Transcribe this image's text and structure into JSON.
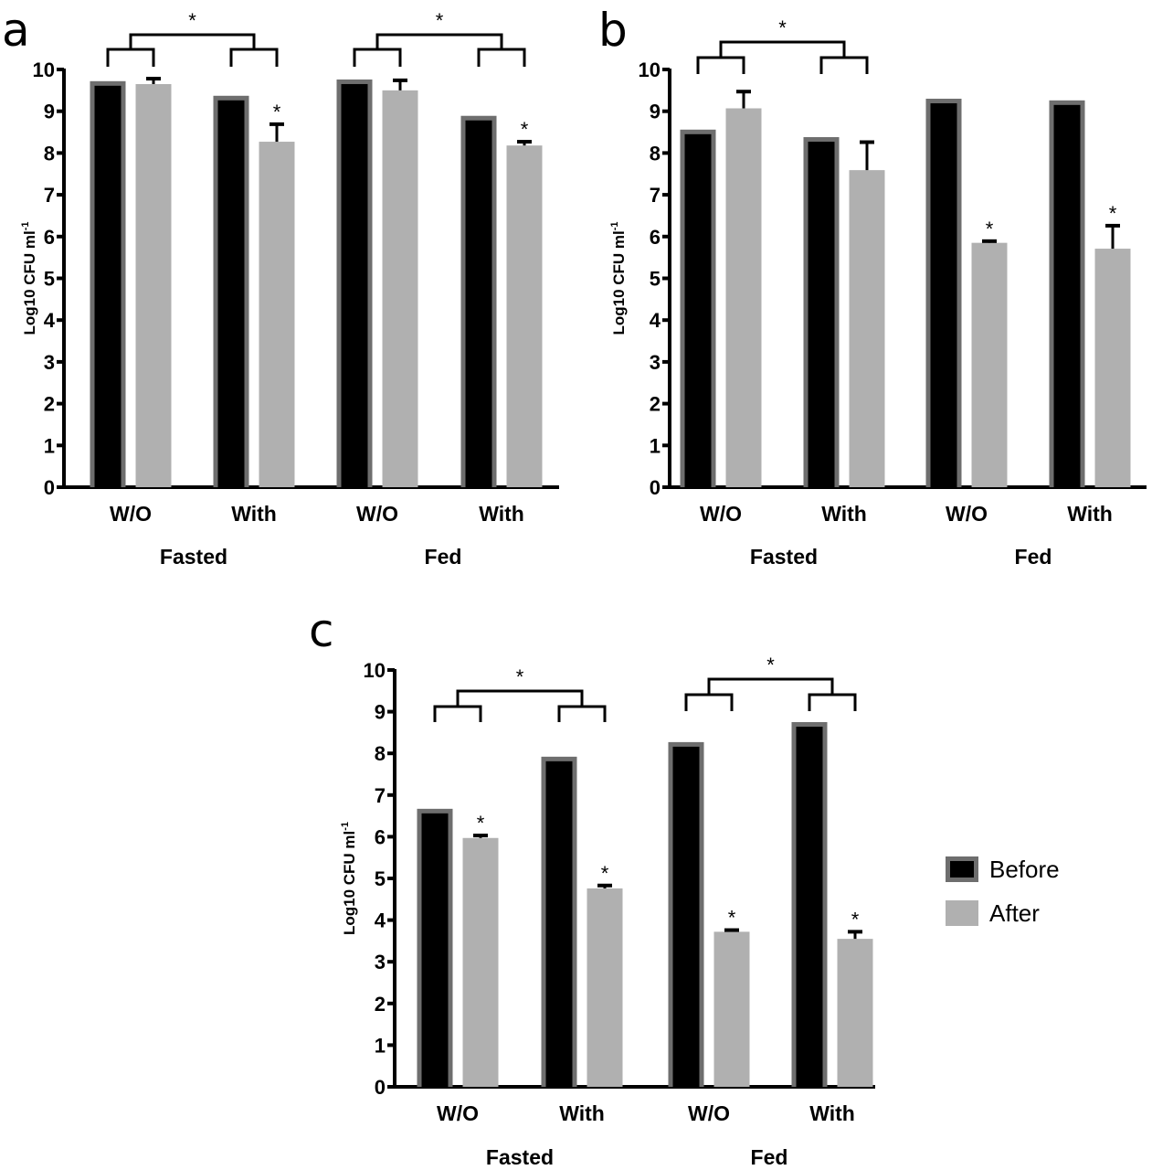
{
  "colors": {
    "before_fill": "#000000",
    "before_outline": "#6e6e6e",
    "after_fill": "#b0b0b0",
    "axis": "#000000"
  },
  "legend": {
    "placement": "right",
    "items": [
      {
        "label": "Before",
        "color": "#000000"
      },
      {
        "label": "After",
        "color": "#b0b0b0"
      }
    ]
  },
  "chart_data": [
    {
      "panel": "a",
      "type": "bar",
      "ylabel": "Log10 CFU ml",
      "ylabel_superscript": "-1",
      "ylim": [
        0,
        10
      ],
      "yticks": [
        "0",
        "1",
        "2",
        "3",
        "4",
        "5",
        "6",
        "7",
        "8",
        "9",
        "10"
      ],
      "categories": [
        "W/O",
        "With",
        "W/O",
        "With"
      ],
      "category_groups": [
        {
          "label": "Fasted",
          "members": [
            0,
            1
          ]
        },
        {
          "label": "Fed",
          "members": [
            2,
            3
          ]
        }
      ],
      "series": [
        {
          "name": "Before",
          "values": [
            9.72,
            9.37,
            9.76,
            8.89
          ]
        },
        {
          "name": "After",
          "values": [
            9.65,
            8.27,
            9.5,
            8.18
          ],
          "errors": [
            0.13,
            0.42,
            0.24,
            0.09
          ]
        }
      ],
      "after_significance": [
        "",
        "*",
        "",
        "*"
      ],
      "brackets": [
        {
          "groups": [
            0,
            1
          ],
          "label": "*"
        },
        {
          "groups": [
            2,
            3
          ],
          "label": "*"
        }
      ]
    },
    {
      "panel": "b",
      "type": "bar",
      "ylabel": "Log10 CFU ml",
      "ylabel_superscript": "-1",
      "ylim": [
        0,
        10
      ],
      "yticks": [
        "0",
        "1",
        "2",
        "3",
        "4",
        "5",
        "6",
        "7",
        "8",
        "9",
        "10"
      ],
      "categories": [
        "W/O",
        "With",
        "W/O",
        "With"
      ],
      "category_groups": [
        {
          "label": "Fasted",
          "members": [
            0,
            1
          ]
        },
        {
          "label": "Fed",
          "members": [
            2,
            3
          ]
        }
      ],
      "series": [
        {
          "name": "Before",
          "values": [
            8.56,
            8.38,
            9.3,
            9.26
          ]
        },
        {
          "name": "After",
          "values": [
            9.07,
            7.59,
            5.85,
            5.71
          ],
          "errors": [
            0.4,
            0.67,
            0.04,
            0.55
          ]
        }
      ],
      "after_significance": [
        "",
        "",
        "*",
        "*"
      ],
      "brackets": [
        {
          "groups": [
            0,
            1
          ],
          "label": "*"
        }
      ]
    },
    {
      "panel": "c",
      "type": "bar",
      "ylabel": "Log10 CFU ml",
      "ylabel_superscript": "-1",
      "ylim": [
        0,
        10
      ],
      "yticks": [
        "0",
        "1",
        "2",
        "3",
        "4",
        "5",
        "6",
        "7",
        "8",
        "9",
        "10"
      ],
      "categories": [
        "W/O",
        "With",
        "W/O",
        "With"
      ],
      "category_groups": [
        {
          "label": "Fasted",
          "members": [
            0,
            1
          ]
        },
        {
          "label": "Fed",
          "members": [
            2,
            3
          ]
        }
      ],
      "series": [
        {
          "name": "Before",
          "values": [
            6.67,
            7.92,
            8.27,
            8.75
          ]
        },
        {
          "name": "After",
          "values": [
            5.97,
            4.76,
            3.72,
            3.55
          ],
          "errors": [
            0.06,
            0.07,
            0.04,
            0.17
          ]
        }
      ],
      "after_significance": [
        "*",
        "*",
        "*",
        "*"
      ],
      "brackets": [
        {
          "groups": [
            0,
            1
          ],
          "label": "*"
        },
        {
          "groups": [
            2,
            3
          ],
          "label": "*"
        }
      ]
    }
  ]
}
